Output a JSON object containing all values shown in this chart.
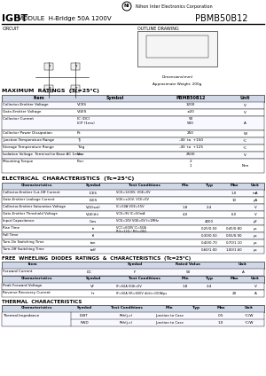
{
  "title_igbt": "IGBT",
  "title_module": " MODULE  H-Bridge 50A 1200V",
  "title_part": "PBMB50B12",
  "company": "Nihon Inter Electronics Corporation",
  "circuit_label": "CIRCUIT",
  "outline_label": "OUTLINE DRAWING",
  "max_ratings_title": "MAXIMUM  RATINGS  (Tc=25°C)",
  "max_ratings_headers": [
    "Item",
    "Symbol",
    "PBMB50B12",
    "Unit"
  ],
  "max_ratings_rows": [
    [
      "Collector-Emitter Voltage",
      "VCES",
      "1200",
      "V"
    ],
    [
      "Gate-Emitter Voltage",
      "VGES",
      "±20",
      "V"
    ],
    [
      "Collector Current",
      "DC\nIC\n1ms\nICP",
      "50\n500",
      "A"
    ],
    [
      "Collector Power Dissipation",
      "Pc",
      "250",
      "W"
    ],
    [
      "Junction Temperature Range",
      "Tj",
      "-40  to  +150",
      "°C"
    ],
    [
      "Storage Temperature Range",
      "Tstg",
      "-40  to  +125",
      "°C"
    ],
    [
      "Isolation Voltage  Terminal to Base AC, 1 min.",
      "Viso",
      "2500",
      "V"
    ],
    [
      "Mounting Torque\nMounting Bolt (to heatsink)\nBus Bar (to Module Terminals)",
      "Ftor",
      "2\n1",
      "N·m"
    ]
  ],
  "elec_title": "ELECTRICAL  CHARACTERISTICS  (Tc=25°C)",
  "elec_headers": [
    "Characteristics",
    "Symbol",
    "Test Conditions",
    "Min",
    "Typ",
    "Max",
    "Unit"
  ],
  "elec_rows": [
    [
      "Collector-Emitter Cut-Off Current",
      "ICES",
      "VCE=1200V, VGE=0V",
      "",
      "",
      "1.0",
      "mA"
    ],
    [
      "Gate-Emitter Leakage Current",
      "IGES",
      "VGE=±20V, VCE=0V",
      "",
      "",
      "10",
      "μA"
    ],
    [
      "Collector-Emitter Saturation Voltage",
      "VCE(sat)",
      "IC=50A VGE=15V",
      "1.8",
      "2.4",
      "",
      "V"
    ],
    [
      "Gate-Emitter Threshold Voltage",
      "VGE(th)",
      "VCE=9V IC=50mA",
      "4.0",
      "",
      "6.0",
      "V"
    ],
    [
      "Input Capacitance",
      "Cies",
      "VCE=10V VGE=0V f=1MHz",
      "",
      "4000",
      "",
      "pF"
    ],
    [
      "Rise Time",
      "tr",
      "VCC=600V\nIC=50A\nRG=12Ω\nRG=20Ω",
      "",
      "0.25\n0.50",
      "0.45\n0.80",
      ""
    ],
    [
      "Fall Time",
      "tf",
      "",
      "",
      "0.30\n0.50",
      "0.55\n0.90",
      "μs"
    ],
    [
      "Turn-On Switching Time",
      "ton",
      "",
      "",
      "0.40\n0.70",
      "0.70\n1.10",
      ""
    ],
    [
      "Turn-Off Switching Time",
      "toff",
      "",
      "",
      "0.60\n1.00",
      "1.00\n1.60",
      ""
    ]
  ],
  "freewheeling_title": "FREE  WHEELING  DIODES  RATINGS  &  CHARACTERISTICS  (Tc=25°C)",
  "freewheeling_headers": [
    "Item",
    "",
    "Symbol",
    "Rated Value",
    "Unit"
  ],
  "freewheeling_ratings": [
    [
      "Forward Current",
      "DC",
      "IF",
      "50",
      "A"
    ]
  ],
  "freewheeling_chars_headers": [
    "Characteristics",
    "Symbol",
    "Test Conditions",
    "Min",
    "Typ",
    "Max",
    "Unit"
  ],
  "freewheeling_chars": [
    [
      "Peak Forward Voltage",
      "VF",
      "IF=50A VGE=0V",
      "1.8",
      "2.4",
      "",
      "V"
    ],
    [
      "Reverse Recovery Current",
      "Irr",
      "IF=50A VR=600V di/dt=100A/μs",
      "",
      "",
      "20",
      "A"
    ]
  ],
  "thermal_title": "THERMAL  CHARACTERISTICS",
  "thermal_headers": [
    "Characteristics",
    "Symbol",
    "Test Conditions",
    "Min",
    "Typ",
    "Max",
    "Unit"
  ],
  "thermal_rows": [
    [
      "Thermal Impedance",
      "IGBT",
      "Rth(j-c)",
      "Junction to Case",
      "",
      "0.5",
      "",
      "°C/W"
    ],
    [
      "",
      "FWD",
      "",
      "",
      "",
      "1.0",
      "",
      ""
    ]
  ],
  "bg_color": "#ffffff",
  "header_color": "#d0d8e8",
  "table_line_color": "#555555",
  "title_line_color": "#000000"
}
